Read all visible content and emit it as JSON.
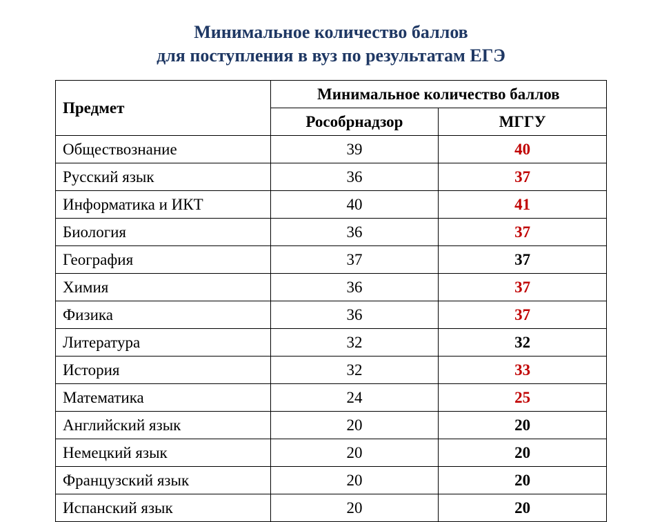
{
  "title_line1": "Минимальное количество баллов",
  "title_line2": "для поступления в вуз по результатам ЕГЭ",
  "headers": {
    "subject": "Предмет",
    "scores_group": "Минимальное количество баллов",
    "col1": "Рособрнадзор",
    "col2": "МГГУ"
  },
  "rows": [
    {
      "subject": "Обществознание",
      "col1": "39",
      "col2": "40",
      "highlight": true
    },
    {
      "subject": "Русский язык",
      "col1": "36",
      "col2": "37",
      "highlight": true
    },
    {
      "subject": "Информатика и ИКТ",
      "col1": "40",
      "col2": "41",
      "highlight": true
    },
    {
      "subject": "Биология",
      "col1": "36",
      "col2": "37",
      "highlight": true
    },
    {
      "subject": "География",
      "col1": "37",
      "col2": "37",
      "highlight": false
    },
    {
      "subject": "Химия",
      "col1": "36",
      "col2": "37",
      "highlight": true
    },
    {
      "subject": "Физика",
      "col1": "36",
      "col2": "37",
      "highlight": true
    },
    {
      "subject": "Литература",
      "col1": "32",
      "col2": "32",
      "highlight": false
    },
    {
      "subject": "История",
      "col1": "32",
      "col2": "33",
      "highlight": true
    },
    {
      "subject": "Математика",
      "col1": "24",
      "col2": "25",
      "highlight": true
    },
    {
      "subject": "Английский язык",
      "col1": "20",
      "col2": "20",
      "highlight": false
    },
    {
      "subject": "Немецкий язык",
      "col1": "20",
      "col2": "20",
      "highlight": false
    },
    {
      "subject": "Французский язык",
      "col1": "20",
      "col2": "20",
      "highlight": false
    },
    {
      "subject": "Испанский язык",
      "col1": "20",
      "col2": "20",
      "highlight": false
    }
  ],
  "colors": {
    "title_color": "#1f3864",
    "highlight_color": "#c00000",
    "text_color": "#000000",
    "border_color": "#000000",
    "background_color": "#ffffff"
  },
  "typography": {
    "title_fontsize": 26,
    "table_fontsize": 23,
    "font_family": "Times New Roman"
  }
}
